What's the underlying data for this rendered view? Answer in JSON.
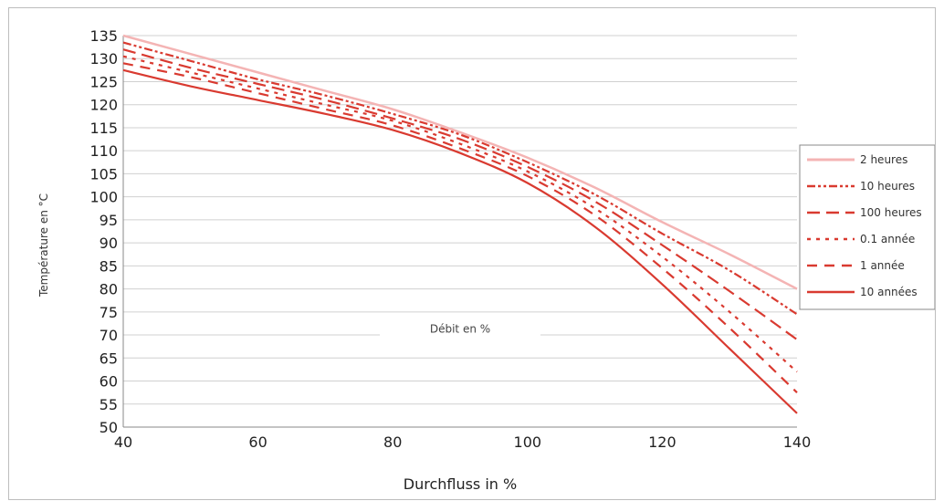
{
  "chart_data": {
    "type": "line",
    "title": "",
    "xlabel": "Durchfluss in %",
    "ylabel": "Température en °C",
    "annotation": "Débit en %",
    "xlim": [
      40,
      140
    ],
    "ylim": [
      50,
      135
    ],
    "x_ticks": [
      40,
      60,
      80,
      100,
      120,
      140
    ],
    "y_ticks": [
      50,
      55,
      60,
      65,
      70,
      75,
      80,
      85,
      90,
      95,
      100,
      105,
      110,
      115,
      120,
      125,
      130,
      135
    ],
    "grid": "horizontal",
    "legend_position": "right",
    "x": [
      40,
      50,
      60,
      70,
      80,
      90,
      100,
      110,
      120,
      130,
      140
    ],
    "series": [
      {
        "name": "2 heures",
        "color": "#f4b4b4",
        "dash": "solid-light",
        "values": [
          135,
          131,
          127,
          123,
          119,
          114,
          108.5,
          102,
          94.5,
          87.5,
          80
        ]
      },
      {
        "name": "10 heures",
        "color": "#d93a30",
        "dash": "dash-dot-dot",
        "values": [
          133.5,
          129.5,
          125.5,
          122,
          118,
          113.5,
          107.5,
          100.5,
          92,
          84,
          74.5
        ]
      },
      {
        "name": "100 heures",
        "color": "#d93a30",
        "dash": "long-dash",
        "values": [
          132,
          128,
          124.5,
          121,
          117,
          112.5,
          106.5,
          99,
          89.5,
          79.5,
          69
        ]
      },
      {
        "name": "0.1 année",
        "color": "#d93a30",
        "dash": "dotted",
        "values": [
          130.5,
          127,
          123.5,
          120,
          116.5,
          111.5,
          105.5,
          97.5,
          87,
          75,
          62
        ]
      },
      {
        "name": "1 année",
        "color": "#d93a30",
        "dash": "dash",
        "values": [
          129,
          126,
          122.5,
          119,
          115.5,
          110.5,
          104.5,
          96,
          84.5,
          71.5,
          57.5
        ]
      },
      {
        "name": "10 années",
        "color": "#d93a30",
        "dash": "solid",
        "values": [
          127.5,
          124,
          121,
          118,
          114.5,
          109.5,
          103,
          93.5,
          81,
          67,
          53
        ]
      }
    ]
  }
}
